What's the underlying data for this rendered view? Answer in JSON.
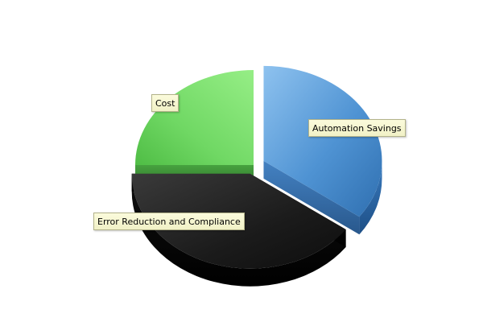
{
  "chart_data": {
    "type": "pie",
    "title": "",
    "slices": [
      {
        "label": "Automation Savings",
        "value": 35,
        "exploded": true,
        "color": "#4a8ed0"
      },
      {
        "label": "Error Reduction and Compliance",
        "value": 40,
        "exploded": true,
        "color": "#1c1c1c"
      },
      {
        "label": "Cost",
        "value": 25,
        "exploded": false,
        "color": "#5fcf54"
      }
    ],
    "three_d": true,
    "legend": "none",
    "labels_style": "callout-boxes"
  }
}
